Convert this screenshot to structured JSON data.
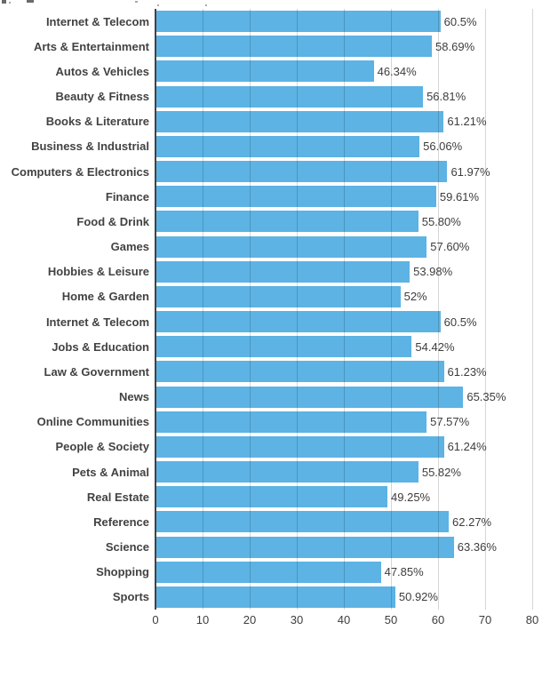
{
  "chart_data": {
    "type": "bar",
    "orientation": "horizontal",
    "title": "",
    "xlabel": "",
    "ylabel": "",
    "categories": [
      "Internet & Telecom",
      "Arts & Entertainment",
      "Autos & Vehicles",
      "Beauty & Fitness",
      "Books & Literature",
      "Business & Industrial",
      "Computers & Electronics",
      "Finance",
      "Food & Drink",
      "Games",
      "Hobbies & Leisure",
      "Home & Garden",
      "Internet & Telecom",
      "Jobs & Education",
      "Law & Government",
      "News",
      "Online Communities",
      "People & Society",
      "Pets & Animal",
      "Real Estate",
      "Reference",
      "Science",
      "Shopping",
      "Sports"
    ],
    "values": [
      60.5,
      58.69,
      46.34,
      56.81,
      61.21,
      56.06,
      61.97,
      59.61,
      55.8,
      57.6,
      53.98,
      52,
      60.5,
      54.42,
      61.23,
      65.35,
      57.57,
      61.24,
      55.82,
      49.25,
      62.27,
      63.36,
      47.85,
      50.92
    ],
    "value_labels": [
      "60.5%",
      "58.69%",
      "46.34%",
      "56.81%",
      "61.21%",
      "56.06%",
      "61.97%",
      "59.61%",
      "55.80%",
      "57.60%",
      "53.98%",
      "52%",
      "60.5%",
      "54.42%",
      "61.23%",
      "65.35%",
      "57.57%",
      "61.24%",
      "55.82%",
      "49.25%",
      "62.27%",
      "63.36%",
      "47.85%",
      "50.92%"
    ],
    "ticks": [
      "0",
      "10",
      "20",
      "30",
      "40",
      "50",
      "60",
      "70",
      "80"
    ],
    "xlim": [
      0,
      80
    ],
    "grid": true,
    "legend_position": "none",
    "bar_color": "#5cb3e4",
    "text_color": "#424242"
  }
}
